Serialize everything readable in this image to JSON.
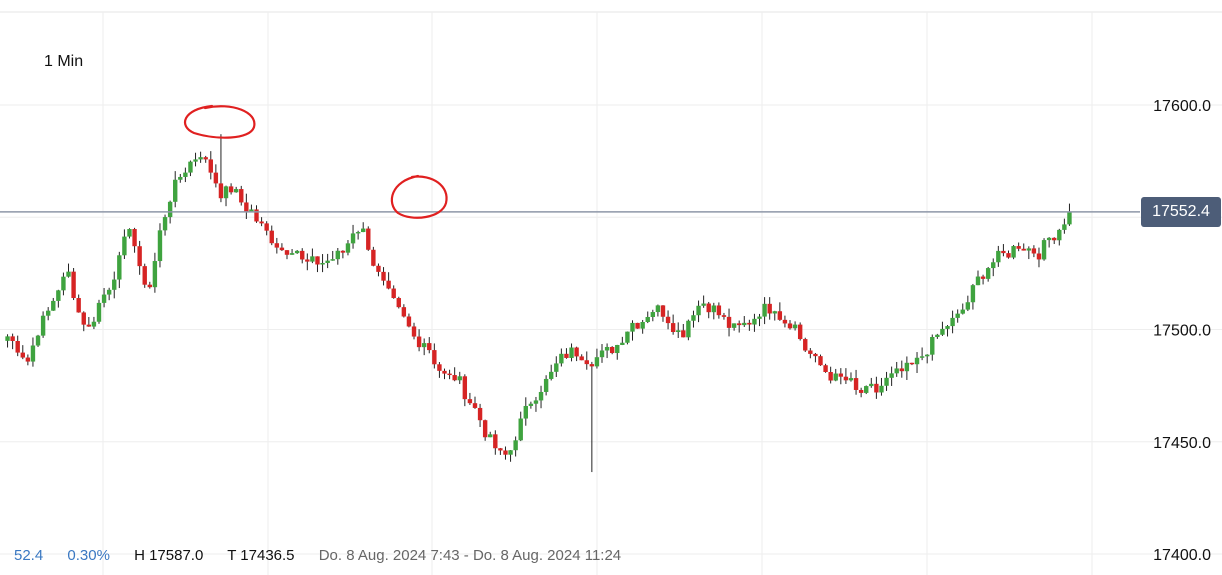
{
  "timeframe": "1 Min",
  "footer": {
    "change": "52.4",
    "change_pct": "0.30%",
    "high": "H 17587.0",
    "low": "T 17436.5",
    "range": "Do. 8 Aug. 2024 7:43 - Do. 8 Aug. 2024 11:24"
  },
  "current_price": "17552.4",
  "chart_data": {
    "type": "candlestick",
    "title": "",
    "xlabel": "",
    "ylabel": "",
    "interval": "1 Min",
    "x_range": [
      "8 Aug. 2024 7:43",
      "8 Aug. 2024 11:24"
    ],
    "ylim": [
      17400,
      17640
    ],
    "yticks": [
      17600.0,
      17550.0,
      17500.0,
      17450.0,
      17400.0
    ],
    "ytick_labels": [
      "17600.0",
      "17500.0",
      "17450.0",
      "17400.0"
    ],
    "grid": true,
    "high": 17587.0,
    "low": 17436.5,
    "last": 17552.4,
    "up_color": "#3fa33f",
    "down_color": "#d62424",
    "last_price_line_color": "#8e97a8",
    "annotation_color": "#e02020",
    "close_path": [
      17497,
      17492,
      17486,
      17500,
      17508,
      17519,
      17525,
      17507,
      17500,
      17512,
      17520,
      17531,
      17548,
      17524,
      17519,
      17545,
      17560,
      17569,
      17575,
      17578,
      17570,
      17560,
      17563,
      17556,
      17551,
      17545,
      17540,
      17535,
      17537,
      17529,
      17530,
      17530,
      17532,
      17535,
      17546,
      17543,
      17527,
      17518,
      17510,
      17503,
      17495,
      17495,
      17484,
      17478,
      17479,
      17470,
      17463,
      17452,
      17446,
      17443,
      17456,
      17466,
      17473,
      17478,
      17486,
      17490,
      17490,
      17486,
      17488,
      17491,
      17494,
      17503,
      17503,
      17509,
      17509,
      17503,
      17497,
      17508,
      17512,
      17510,
      17505,
      17500,
      17501,
      17505,
      17509,
      17510,
      17504,
      17503,
      17492,
      17487,
      17482,
      17478,
      17478,
      17472,
      17472,
      17472,
      17477,
      17480,
      17482,
      17485,
      17491,
      17496,
      17502,
      17505,
      17512,
      17522,
      17528,
      17532,
      17534,
      17538,
      17536,
      17534,
      17540,
      17545,
      17552.4
    ],
    "annotations": [
      {
        "type": "circle",
        "at": "session high",
        "value": 17587.0
      },
      {
        "type": "circle",
        "at": "lower high",
        "value": 17556
      }
    ]
  }
}
